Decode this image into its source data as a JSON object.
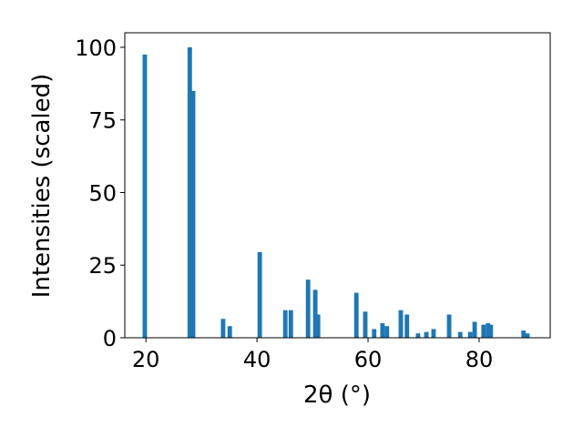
{
  "chart_data": {
    "type": "bar",
    "xlabel": "2θ (°)",
    "ylabel": "Intensities (scaled)",
    "x": [
      19.8,
      27.9,
      28.5,
      33.9,
      35.1,
      40.5,
      45.1,
      46.1,
      49.2,
      50.5,
      51.0,
      57.9,
      59.5,
      61.1,
      62.6,
      63.4,
      65.9,
      67.0,
      69.0,
      70.5,
      71.8,
      74.6,
      76.6,
      78.4,
      79.2,
      80.8,
      81.6,
      82.1,
      88.0,
      88.7
    ],
    "values": [
      97.5,
      100,
      85,
      6.5,
      4,
      29.5,
      9.5,
      9.5,
      20,
      16.5,
      8,
      15.5,
      9,
      3,
      5,
      4,
      9.5,
      8,
      1.5,
      2,
      3,
      8,
      2,
      2,
      5.5,
      4.5,
      5,
      4.5,
      2.5,
      1.5
    ],
    "color": "#1f77b4",
    "xlim": [
      16.2,
      92.8
    ],
    "ylim": [
      0,
      105
    ],
    "xticks": [
      20,
      40,
      60,
      80
    ],
    "yticks": [
      0,
      25,
      50,
      75,
      100
    ]
  }
}
